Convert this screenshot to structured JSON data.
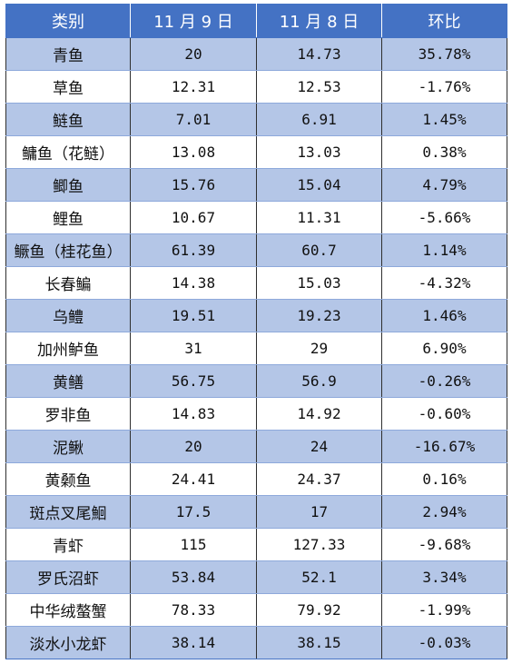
{
  "table": {
    "headers": [
      "类别",
      "11 月 9 日",
      "11 月 8 日",
      "环比"
    ],
    "rows": [
      [
        "青鱼",
        "20",
        "14.73",
        "35.78%"
      ],
      [
        "草鱼",
        "12.31",
        "12.53",
        "-1.76%"
      ],
      [
        "鲢鱼",
        "7.01",
        "6.91",
        "1.45%"
      ],
      [
        "鳙鱼（花鲢）",
        "13.08",
        "13.03",
        "0.38%"
      ],
      [
        "鲫鱼",
        "15.76",
        "15.04",
        "4.79%"
      ],
      [
        "鲤鱼",
        "10.67",
        "11.31",
        "-5.66%"
      ],
      [
        "鳜鱼（桂花鱼）",
        "61.39",
        "60.7",
        "1.14%"
      ],
      [
        "长春鳊",
        "14.38",
        "15.03",
        "-4.32%"
      ],
      [
        "乌鳢",
        "19.51",
        "19.23",
        "1.46%"
      ],
      [
        "加州鲈鱼",
        "31",
        "29",
        "6.90%"
      ],
      [
        "黄鳝",
        "56.75",
        "56.9",
        "-0.26%"
      ],
      [
        "罗非鱼",
        "14.83",
        "14.92",
        "-0.60%"
      ],
      [
        "泥鳅",
        "20",
        "24",
        "-16.67%"
      ],
      [
        "黄颡鱼",
        "24.41",
        "24.37",
        "0.16%"
      ],
      [
        "斑点叉尾鮰",
        "17.5",
        "17",
        "2.94%"
      ],
      [
        "青虾",
        "115",
        "127.33",
        "-9.68%"
      ],
      [
        "罗氏沼虾",
        "53.84",
        "52.1",
        "3.34%"
      ],
      [
        "中华绒螯蟹",
        "78.33",
        "79.92",
        "-1.99%"
      ],
      [
        "淡水小龙虾",
        "38.14",
        "38.15",
        "-0.03%"
      ]
    ]
  },
  "colors": {
    "header_bg": "#4472c4",
    "band_bg": "#b4c6e7",
    "row_bg": "#ffffff"
  }
}
